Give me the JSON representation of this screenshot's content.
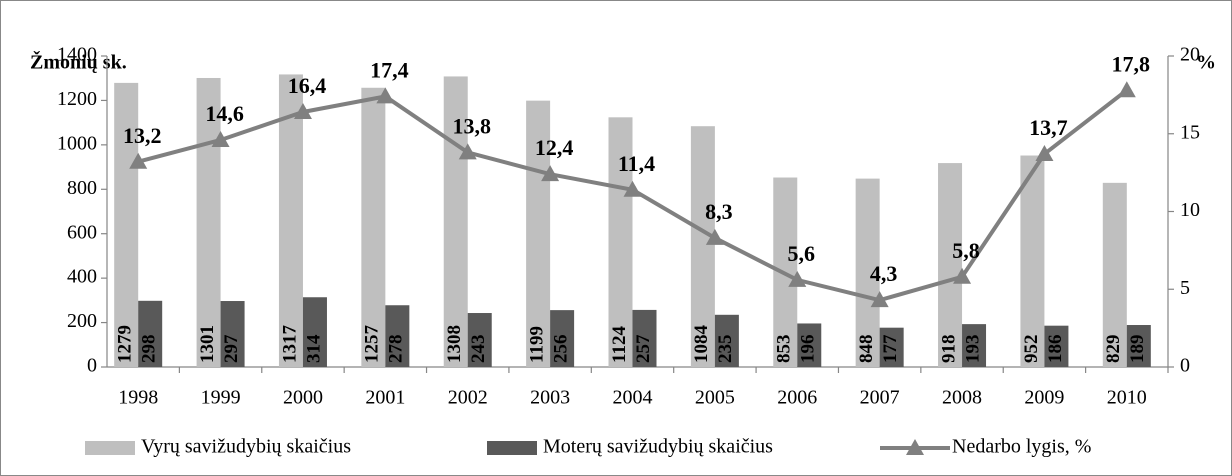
{
  "chart_data": {
    "type": "bar",
    "y_label": "Žmonių sk.",
    "y2_label": "%",
    "categories": [
      "1998",
      "1999",
      "2000",
      "2001",
      "2002",
      "2003",
      "2004",
      "2005",
      "2006",
      "2007",
      "2008",
      "2009",
      "2010"
    ],
    "series": [
      {
        "name": "Vyrų savižudybių skaičius",
        "color": "#bfbfbf",
        "values": [
          1279,
          1301,
          1317,
          1257,
          1308,
          1199,
          1124,
          1084,
          853,
          848,
          918,
          952,
          829
        ]
      },
      {
        "name": "Moterų savižudybių skaičius",
        "color": "#595959",
        "values": [
          298,
          297,
          314,
          278,
          243,
          256,
          257,
          235,
          196,
          177,
          193,
          186,
          189
        ]
      },
      {
        "name": "Nedarbo lygis, %",
        "color": "#808080",
        "type": "line",
        "axis": "y2",
        "marker": "triangle",
        "values": [
          13.2,
          14.6,
          16.4,
          17.4,
          13.8,
          12.4,
          11.4,
          8.3,
          5.6,
          4.3,
          5.8,
          13.7,
          17.8
        ],
        "value_labels": [
          "13,2",
          "14,6",
          "16,4",
          "17,4",
          "13,8",
          "12,4",
          "11,4",
          "8,3",
          "5,6",
          "4,3",
          "5,8",
          "13,7",
          "17,8"
        ]
      }
    ],
    "ylim": [
      0,
      1400
    ],
    "yticks": [
      0,
      200,
      400,
      600,
      800,
      1000,
      1200,
      1400
    ],
    "y2lim": [
      0,
      20
    ],
    "y2ticks": [
      0,
      5,
      10,
      15,
      20
    ],
    "grid": false,
    "legend": "bottom"
  }
}
